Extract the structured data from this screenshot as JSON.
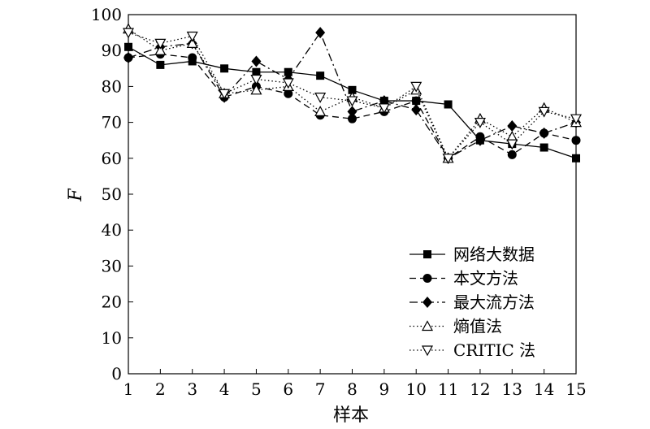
{
  "chart_data": {
    "type": "line",
    "x": [
      1,
      2,
      3,
      4,
      5,
      6,
      7,
      8,
      9,
      10,
      11,
      12,
      13,
      14,
      15
    ],
    "x_tick_labels": [
      "1",
      "2",
      "3",
      "4",
      "5",
      "6",
      "7",
      "8",
      "9",
      "10",
      "11",
      "12",
      "13",
      "14",
      "15"
    ],
    "y_tick_labels": [
      "0",
      "10",
      "20",
      "30",
      "40",
      "50",
      "60",
      "70",
      "80",
      "90",
      "100"
    ],
    "xlabel": "样本",
    "ylabel": "F",
    "xlim": [
      1,
      15
    ],
    "ylim": [
      0,
      100
    ],
    "grid": false,
    "legend_position": "bottom-right",
    "series": [
      {
        "name": "网络大数据",
        "marker": "square",
        "dash": "solid",
        "color": "#000000",
        "values": [
          91,
          86,
          87,
          85,
          84,
          84,
          83,
          79,
          76,
          76,
          75,
          65,
          64,
          63,
          60
        ]
      },
      {
        "name": "本文方法",
        "marker": "circle",
        "dash": "dashed",
        "color": "#000000",
        "values": [
          88,
          89,
          88,
          77,
          80,
          78,
          72,
          71,
          73,
          76,
          60,
          66,
          61,
          67,
          65
        ]
      },
      {
        "name": "最大流方法",
        "marker": "diamond",
        "dash": "dashdot",
        "color": "#000000",
        "values": [
          88,
          91,
          92,
          77,
          87,
          82,
          95,
          73,
          76,
          73.5,
          60,
          65,
          69,
          67,
          70
        ]
      },
      {
        "name": "熵值法",
        "marker": "triangle-up",
        "dash": "dotted",
        "color": "#000000",
        "values": [
          96,
          90,
          92,
          78,
          79,
          80,
          73,
          77,
          74,
          79,
          60,
          71,
          66,
          74,
          70
        ]
      },
      {
        "name": "CRITIC 法",
        "marker": "triangle-down",
        "dash": "dotted",
        "color": "#000000",
        "values": [
          95,
          92,
          94,
          78,
          82,
          81,
          77,
          76,
          74,
          80,
          60,
          70,
          64,
          73,
          71
        ]
      }
    ]
  }
}
